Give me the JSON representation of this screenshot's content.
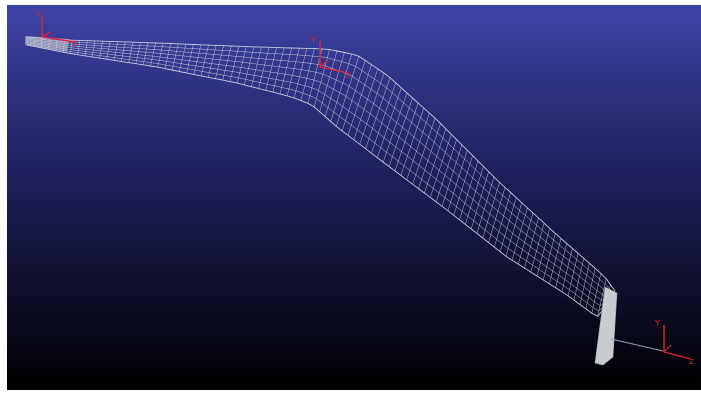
{
  "viewport": {
    "background_top": "#3f43a6",
    "background_mid": "#1e1f5a",
    "background_bottom": "#000000",
    "mesh_color": "#d7d9e6",
    "shell_color": "#c9cccf",
    "axis_color": "#e0243a"
  },
  "axes": [
    {
      "id": "root",
      "y_label": "Y",
      "z_label": "Z"
    },
    {
      "id": "kink",
      "y_label": "Y",
      "z_label": "Z"
    },
    {
      "id": "tip",
      "y_label": "Y",
      "z_label": "Z"
    }
  ]
}
